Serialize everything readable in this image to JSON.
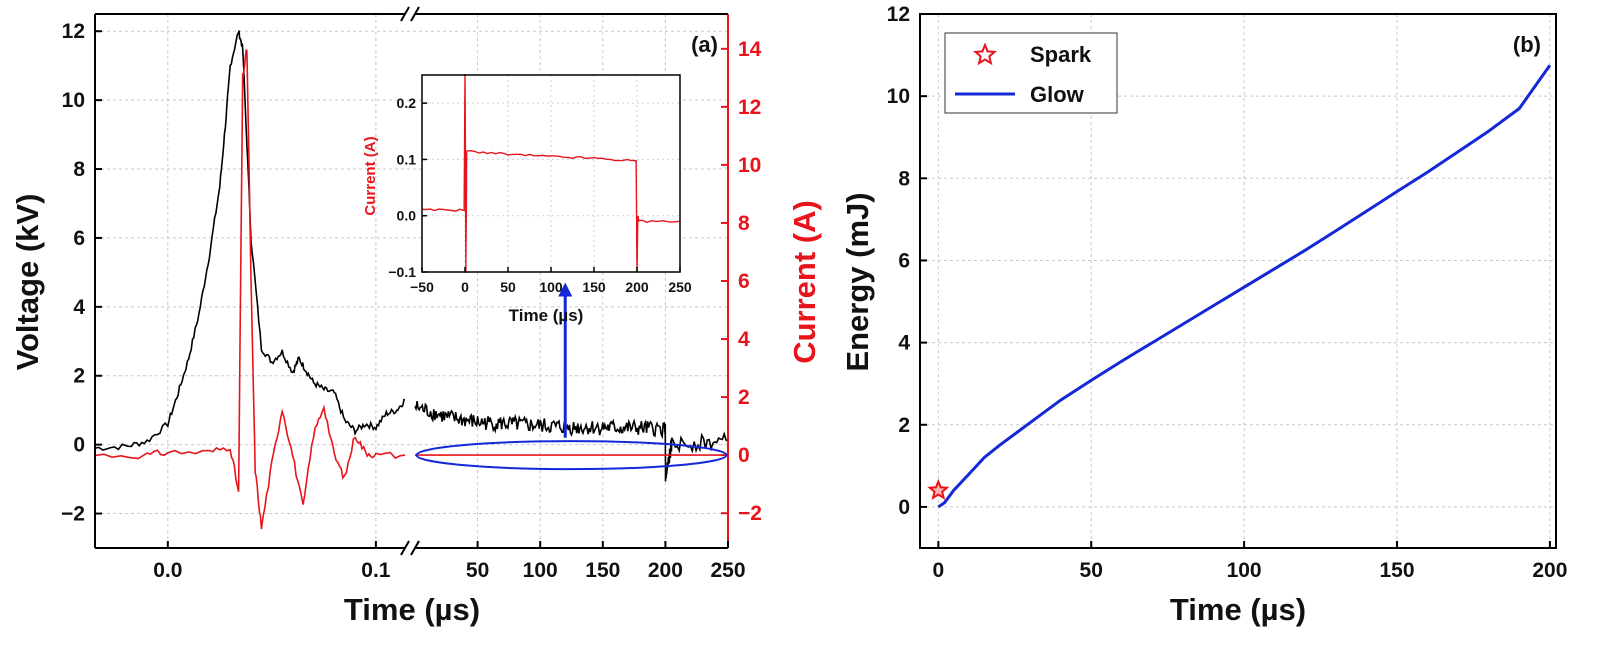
{
  "chart_data": [
    {
      "panel": "(a)",
      "type": "line",
      "xlabel": "Time (µs)",
      "ylabel_left": "Voltage (kV)",
      "ylabel_right": "Current (A)",
      "x_axis": "broken",
      "x_segments": [
        {
          "range": [
            -0.035,
            0.114
          ],
          "ticks": [
            0.0,
            0.1
          ],
          "tick_labels": [
            "0.0",
            "0.1"
          ]
        },
        {
          "range": [
            0,
            250
          ],
          "ticks": [
            50,
            100,
            150,
            200,
            250
          ],
          "tick_labels": [
            "50",
            "100",
            "150",
            "200",
            "250"
          ]
        }
      ],
      "ylim_left": [
        -3,
        12.5
      ],
      "yticks_left": [
        -2,
        0,
        2,
        4,
        6,
        8,
        10,
        12
      ],
      "ytick_labels_left": [
        "−2",
        "0",
        "2",
        "4",
        "6",
        "8",
        "10",
        "12"
      ],
      "ylim_right": [
        -3.2,
        15.2
      ],
      "yticks_right": [
        -2,
        0,
        2,
        4,
        6,
        8,
        10,
        12,
        14
      ],
      "ytick_labels_right": [
        "−2",
        "0",
        "2",
        "4",
        "6",
        "8",
        "10",
        "12",
        "14"
      ],
      "grid": true,
      "colors": {
        "voltage": "#000000",
        "current": "#e8141b",
        "annotation": "#1428d8"
      },
      "series": [
        {
          "axis": "left",
          "segment": 1,
          "x": [
            -0.035,
            -0.02,
            -0.01,
            0.0,
            0.005,
            0.01,
            0.015,
            0.02,
            0.025,
            0.028,
            0.03,
            0.034,
            0.036,
            0.04,
            0.045,
            0.05,
            0.055,
            0.06,
            0.063,
            0.066,
            0.07,
            0.075,
            0.08,
            0.085,
            0.09,
            0.095,
            0.1,
            0.105,
            0.11,
            0.114
          ],
          "y": [
            -0.1,
            -0.05,
            0.1,
            0.6,
            1.5,
            2.5,
            3.8,
            5.5,
            7.5,
            9.5,
            11.0,
            12.0,
            11.5,
            6.0,
            2.8,
            2.4,
            2.7,
            2.1,
            2.5,
            2.2,
            1.8,
            1.6,
            1.5,
            0.7,
            0.4,
            0.6,
            0.5,
            0.9,
            1.0,
            1.3
          ]
        },
        {
          "axis": "left",
          "segment": 2,
          "x": [
            0,
            25,
            50,
            75,
            100,
            125,
            150,
            175,
            199.9,
            200.1,
            205,
            250
          ],
          "y": [
            1.1,
            0.8,
            0.65,
            0.6,
            0.55,
            0.5,
            0.5,
            0.48,
            0.45,
            -1.0,
            0.0,
            0.1
          ]
        },
        {
          "axis": "right",
          "segment": 1,
          "x": [
            -0.035,
            -0.01,
            0.0,
            0.02,
            0.03,
            0.034,
            0.036,
            0.038,
            0.04,
            0.042,
            0.045,
            0.05,
            0.055,
            0.06,
            0.065,
            0.07,
            0.075,
            0.08,
            0.085,
            0.09,
            0.095,
            0.1,
            0.114
          ],
          "y": [
            0.0,
            0.0,
            0.1,
            0.1,
            0.3,
            -1.3,
            13.0,
            14.0,
            6.0,
            -0.5,
            -2.5,
            -0.3,
            1.6,
            0.0,
            -1.8,
            0.7,
            1.7,
            0.0,
            -0.8,
            0.7,
            0.1,
            0.0,
            0.0
          ]
        },
        {
          "axis": "right",
          "segment": 2,
          "x": [
            0,
            250
          ],
          "y": [
            0.0,
            0.0
          ]
        }
      ],
      "inset": {
        "type": "line",
        "xlabel": "Time (µs)",
        "ylabel": "Current (A)",
        "xlim": [
          -50,
          250
        ],
        "ylim": [
          -0.1,
          0.25
        ],
        "xticks": [
          -50,
          0,
          50,
          100,
          150,
          200,
          250
        ],
        "xtick_labels": [
          "−50",
          "0",
          "50",
          "100",
          "150",
          "200",
          "250"
        ],
        "yticks": [
          -0.1,
          0.0,
          0.1,
          0.2
        ],
        "ytick_labels": [
          "−0.1",
          "0.0",
          "0.1",
          "0.2"
        ],
        "series": [
          {
            "x": [
              -50,
              -1,
              0,
              0.5,
              1,
              2,
              50,
              100,
              150,
              198,
              199,
              200,
              201,
              202,
              250
            ],
            "y": [
              0.01,
              0.01,
              0.25,
              0.12,
              -0.1,
              0.115,
              0.109,
              0.105,
              0.102,
              0.097,
              0.097,
              -0.1,
              0.0,
              -0.01,
              -0.01
            ]
          }
        ]
      }
    },
    {
      "panel": "(b)",
      "type": "line",
      "xlabel": "Time (µs)",
      "ylabel": "Energy (mJ)",
      "xlim": [
        -6,
        202
      ],
      "ylim": [
        -1,
        12
      ],
      "xticks": [
        0,
        50,
        100,
        150,
        200
      ],
      "xtick_labels": [
        "0",
        "50",
        "100",
        "150",
        "200"
      ],
      "yticks": [
        0,
        2,
        4,
        6,
        8,
        10,
        12
      ],
      "ytick_labels": [
        "0",
        "2",
        "4",
        "6",
        "8",
        "10",
        "12"
      ],
      "grid": true,
      "legend": "top-left",
      "series": [
        {
          "name": "Spark",
          "marker": "star",
          "color": "#e8141b",
          "x": [
            0
          ],
          "y": [
            0.4
          ]
        },
        {
          "name": "Glow",
          "color": "#1428d8",
          "x": [
            0,
            2,
            5,
            10,
            15,
            20,
            30,
            40,
            50,
            60,
            70,
            80,
            90,
            100,
            110,
            120,
            130,
            140,
            150,
            160,
            170,
            180,
            190,
            200
          ],
          "y": [
            0,
            0.1,
            0.4,
            0.8,
            1.2,
            1.5,
            2.05,
            2.6,
            3.08,
            3.55,
            4.0,
            4.45,
            4.9,
            5.35,
            5.8,
            6.25,
            6.72,
            7.2,
            7.68,
            8.15,
            8.65,
            9.15,
            9.7,
            10.75
          ]
        }
      ]
    }
  ]
}
